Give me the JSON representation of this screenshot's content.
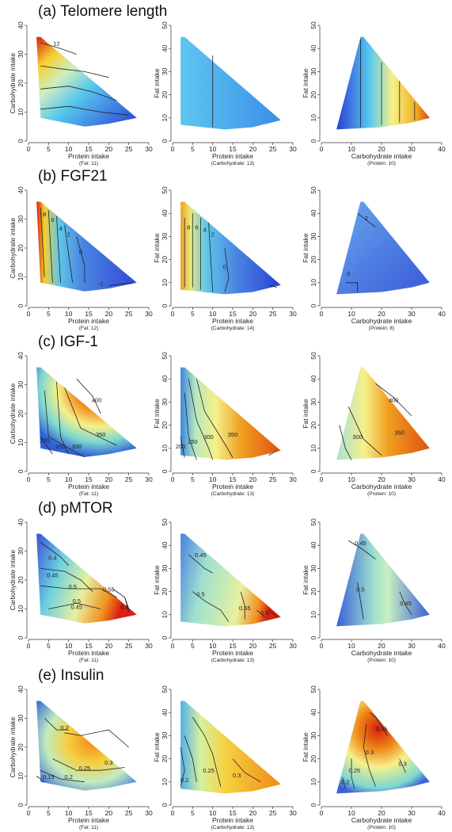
{
  "rows": [
    {
      "title": "(a)   Telomere length",
      "panels": [
        {
          "type": "heatmap",
          "xlabel": "Protein intake",
          "ylabel": "Carbohydrate intake",
          "sub": "(Fat: 11)",
          "xlim": [
            0,
            30
          ],
          "ylim": [
            0,
            40
          ],
          "xticks": [
            0,
            5,
            10,
            15,
            20,
            25,
            30
          ],
          "yticks": [
            0,
            10,
            20,
            30,
            40
          ],
          "contour_labels": [
            "12",
            "10",
            "8",
            "6"
          ]
        },
        {
          "type": "heatmap",
          "xlabel": "Protein intake",
          "ylabel": "Fat intake",
          "sub": "(Carbohydrate: 13)",
          "xlim": [
            0,
            30
          ],
          "ylim": [
            0,
            50
          ],
          "xticks": [
            0,
            5,
            10,
            15,
            20,
            25,
            30
          ],
          "yticks": [
            0,
            10,
            20,
            30,
            40,
            50
          ],
          "contour_labels": []
        },
        {
          "type": "heatmap",
          "xlabel": "Carbohydrate intake",
          "ylabel": "Fat intake",
          "sub": "(Protein: 10)",
          "xlim": [
            0,
            40
          ],
          "ylim": [
            0,
            50
          ],
          "xticks": [
            0,
            10,
            20,
            30,
            40
          ],
          "yticks": [
            0,
            10,
            20,
            30,
            40,
            50
          ],
          "contour_labels": []
        }
      ]
    },
    {
      "title": "(b)   FGF21",
      "panels": [
        {
          "type": "heatmap",
          "xlabel": "Protein intake",
          "ylabel": "Carbohydrate intake",
          "sub": "(Fat: 12)",
          "xlim": [
            0,
            30
          ],
          "ylim": [
            0,
            40
          ],
          "xticks": [
            0,
            5,
            10,
            15,
            20,
            25,
            30
          ],
          "yticks": [
            0,
            10,
            20,
            30,
            40
          ],
          "contour_labels": [
            "8",
            "6",
            "4",
            "2",
            "0",
            "-2"
          ]
        },
        {
          "type": "heatmap",
          "xlabel": "Protein intake",
          "ylabel": "Fat intake",
          "sub": "(Carbohydrate: 14)",
          "xlim": [
            0,
            30
          ],
          "ylim": [
            0,
            50
          ],
          "xticks": [
            0,
            5,
            10,
            15,
            20,
            25,
            30
          ],
          "yticks": [
            0,
            10,
            20,
            30,
            40,
            50
          ],
          "contour_labels": [
            "8",
            "6",
            "4",
            "2",
            "0"
          ]
        },
        {
          "type": "heatmap",
          "xlabel": "Carbohydrate intake",
          "ylabel": "Fat intake",
          "sub": "(Protein: 8)",
          "xlim": [
            0,
            40
          ],
          "ylim": [
            0,
            50
          ],
          "xticks": [
            0,
            10,
            20,
            30,
            40
          ],
          "yticks": [
            0,
            10,
            20,
            30,
            40,
            50
          ],
          "contour_labels": [
            "2",
            "0"
          ]
        }
      ]
    },
    {
      "title": "(c)   IGF-1",
      "panels": [
        {
          "type": "heatmap",
          "xlabel": "Protein intake",
          "ylabel": "Carbohydrate intake",
          "sub": "(Fat: 11)",
          "xlim": [
            0,
            30
          ],
          "ylim": [
            0,
            40
          ],
          "xticks": [
            0,
            5,
            10,
            15,
            20,
            25,
            30
          ],
          "yticks": [
            0,
            10,
            20,
            30,
            40
          ],
          "contour_labels": [
            "400",
            "350",
            "300",
            "250",
            "200"
          ]
        },
        {
          "type": "heatmap",
          "xlabel": "Protein intake",
          "ylabel": "Fat intake",
          "sub": "(Carbohydrate: 13)",
          "xlim": [
            0,
            30
          ],
          "ylim": [
            0,
            50
          ],
          "xticks": [
            0,
            5,
            10,
            15,
            20,
            25,
            30
          ],
          "yticks": [
            0,
            10,
            20,
            30,
            40,
            50
          ],
          "contour_labels": [
            "350",
            "300",
            "250",
            "200"
          ]
        },
        {
          "type": "heatmap",
          "xlabel": "Carbohydrate intake",
          "ylabel": "Fat intake",
          "sub": "(Protein: 10)",
          "xlim": [
            0,
            40
          ],
          "ylim": [
            0,
            50
          ],
          "xticks": [
            0,
            10,
            20,
            30,
            40
          ],
          "yticks": [
            0,
            10,
            20,
            30,
            40,
            50
          ],
          "contour_labels": [
            "400",
            "350",
            "300"
          ]
        }
      ]
    },
    {
      "title": "(d)   pMTOR",
      "panels": [
        {
          "type": "heatmap",
          "xlabel": "Protein intake",
          "ylabel": "Carbohydrate intake",
          "sub": "(Fat: 11)",
          "xlim": [
            0,
            30
          ],
          "ylim": [
            0,
            40
          ],
          "xticks": [
            0,
            5,
            10,
            15,
            20,
            25,
            30
          ],
          "yticks": [
            0,
            10,
            20,
            30,
            40
          ],
          "contour_labels": [
            "0.4",
            "0.45",
            "0.5",
            "0.55",
            "0.5",
            "0.45",
            "0.6"
          ]
        },
        {
          "type": "heatmap",
          "xlabel": "Protein intake",
          "ylabel": "Fat intake",
          "sub": "(Carbohydrate: 13)",
          "xlim": [
            0,
            30
          ],
          "ylim": [
            0,
            50
          ],
          "xticks": [
            0,
            5,
            10,
            15,
            20,
            25,
            30
          ],
          "yticks": [
            0,
            10,
            20,
            30,
            40,
            50
          ],
          "contour_labels": [
            "0.45",
            "0.5",
            "0.55",
            "0.6"
          ]
        },
        {
          "type": "heatmap",
          "xlabel": "Carbohydrate intake",
          "ylabel": "Fat intake",
          "sub": "(Protein: 10)",
          "xlim": [
            0,
            40
          ],
          "ylim": [
            0,
            50
          ],
          "xticks": [
            0,
            10,
            20,
            30,
            40
          ],
          "yticks": [
            0,
            10,
            20,
            30,
            40,
            50
          ],
          "contour_labels": [
            "0.45",
            "0.5",
            "0.45"
          ]
        }
      ]
    },
    {
      "title": "(e)   Insulin",
      "panels": [
        {
          "type": "heatmap",
          "xlabel": "Protein intake",
          "ylabel": "Carbohydrate intake",
          "sub": "(Fat: 11)",
          "xlim": [
            0,
            30
          ],
          "ylim": [
            0,
            40
          ],
          "xticks": [
            0,
            5,
            10,
            15,
            20,
            25,
            30
          ],
          "yticks": [
            0,
            10,
            20,
            30,
            40
          ],
          "contour_labels": [
            "0.2",
            "0.3",
            "0.25",
            "0.2",
            "0.15"
          ]
        },
        {
          "type": "heatmap",
          "xlabel": "Protein intake",
          "ylabel": "Fat intake",
          "sub": "(Carbohydrate: 13)",
          "xlim": [
            0,
            30
          ],
          "ylim": [
            0,
            50
          ],
          "xticks": [
            0,
            5,
            10,
            15,
            20,
            25,
            30
          ],
          "yticks": [
            0,
            10,
            20,
            30,
            40,
            50
          ],
          "contour_labels": [
            "0.2",
            "0.25",
            "0.3"
          ]
        },
        {
          "type": "heatmap",
          "xlabel": "Carbohydrate intake",
          "ylabel": "Fat intake",
          "sub": "(Protein: 10)",
          "xlim": [
            0,
            40
          ],
          "ylim": [
            0,
            50
          ],
          "xticks": [
            0,
            10,
            20,
            30,
            40
          ],
          "yticks": [
            0,
            10,
            20,
            30,
            40,
            50
          ],
          "contour_labels": [
            "0.35",
            "0.3",
            "0.25",
            "0.2",
            "0.3"
          ]
        }
      ]
    }
  ],
  "colors": {
    "low": "#2b3fd6",
    "mid_low": "#56c6ee",
    "mid": "#f6f08a",
    "high": "#f08a18",
    "max": "#d81e10"
  }
}
